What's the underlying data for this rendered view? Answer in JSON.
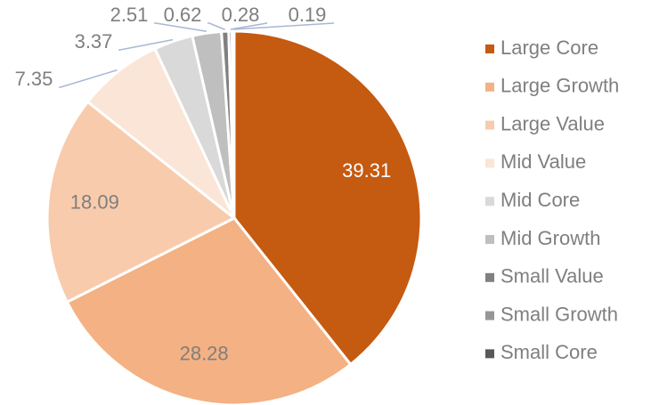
{
  "chart_data": {
    "type": "pie",
    "categories": [
      "Large Core",
      "Large Growth",
      "Large Value",
      "Mid Value",
      "Mid Core",
      "Mid Growth",
      "Small Value",
      "Small Growth",
      "Small Core"
    ],
    "values": [
      39.31,
      28.28,
      18.09,
      7.35,
      3.37,
      2.51,
      0.62,
      0.28,
      0.19
    ],
    "colors": [
      "#c55a11",
      "#f4b183",
      "#f8cbad",
      "#fbe5d6",
      "#d9d9d9",
      "#bfbfbf",
      "#808080",
      "#969696",
      "#595959"
    ],
    "legend": "right"
  }
}
